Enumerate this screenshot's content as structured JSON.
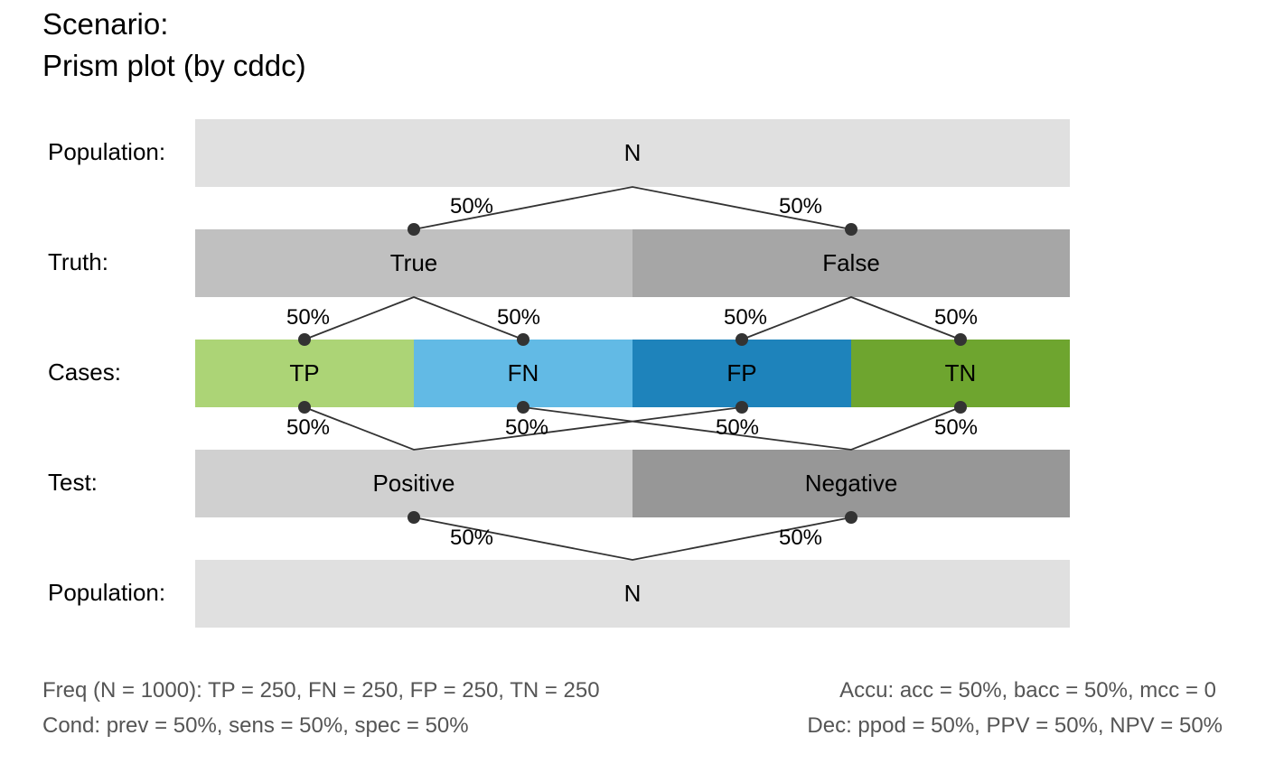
{
  "title": [
    "Scenario:",
    "Prism plot (by cddc)"
  ],
  "colors": {
    "population": "#e0e0e0",
    "true": "#c0c0c0",
    "false": "#a6a6a6",
    "tp": "#acd476",
    "fn": "#62bae5",
    "fp": "#1e83bb",
    "tn": "#6ea52f",
    "positive": "#d0d0d0",
    "negative": "#979797",
    "link": "#333333"
  },
  "rows": {
    "population_top": {
      "label": "Population:",
      "box": "N"
    },
    "truth": {
      "label": "Truth:",
      "true": "True",
      "false": "False"
    },
    "cases": {
      "label": "Cases:",
      "tp": "TP",
      "fn": "FN",
      "fp": "FP",
      "tn": "TN"
    },
    "test": {
      "label": "Test:",
      "positive": "Positive",
      "negative": "Negative"
    },
    "population_bottom": {
      "label": "Population:",
      "box": "N"
    }
  },
  "links": {
    "pop_to_true": "50%",
    "pop_to_false": "50%",
    "true_to_tp": "50%",
    "true_to_fn": "50%",
    "false_to_fp": "50%",
    "false_to_tn": "50%",
    "tp_to_positive": "50%",
    "fn_to_negative": "50%",
    "fp_to_positive": "50%",
    "tn_to_negative": "50%",
    "positive_to_pop": "50%",
    "negative_to_pop": "50%"
  },
  "footer": {
    "freq": "Freq (N = 1000):  TP = 250, FN = 250, FP = 250, TN = 250",
    "cond": "Cond:  prev = 50%, sens = 50%, spec = 50%",
    "accu": "Accu:  acc = 50%, bacc = 50%, mcc = 0",
    "dec": "Dec:  ppod = 50%, PPV = 50%, NPV = 50%"
  }
}
